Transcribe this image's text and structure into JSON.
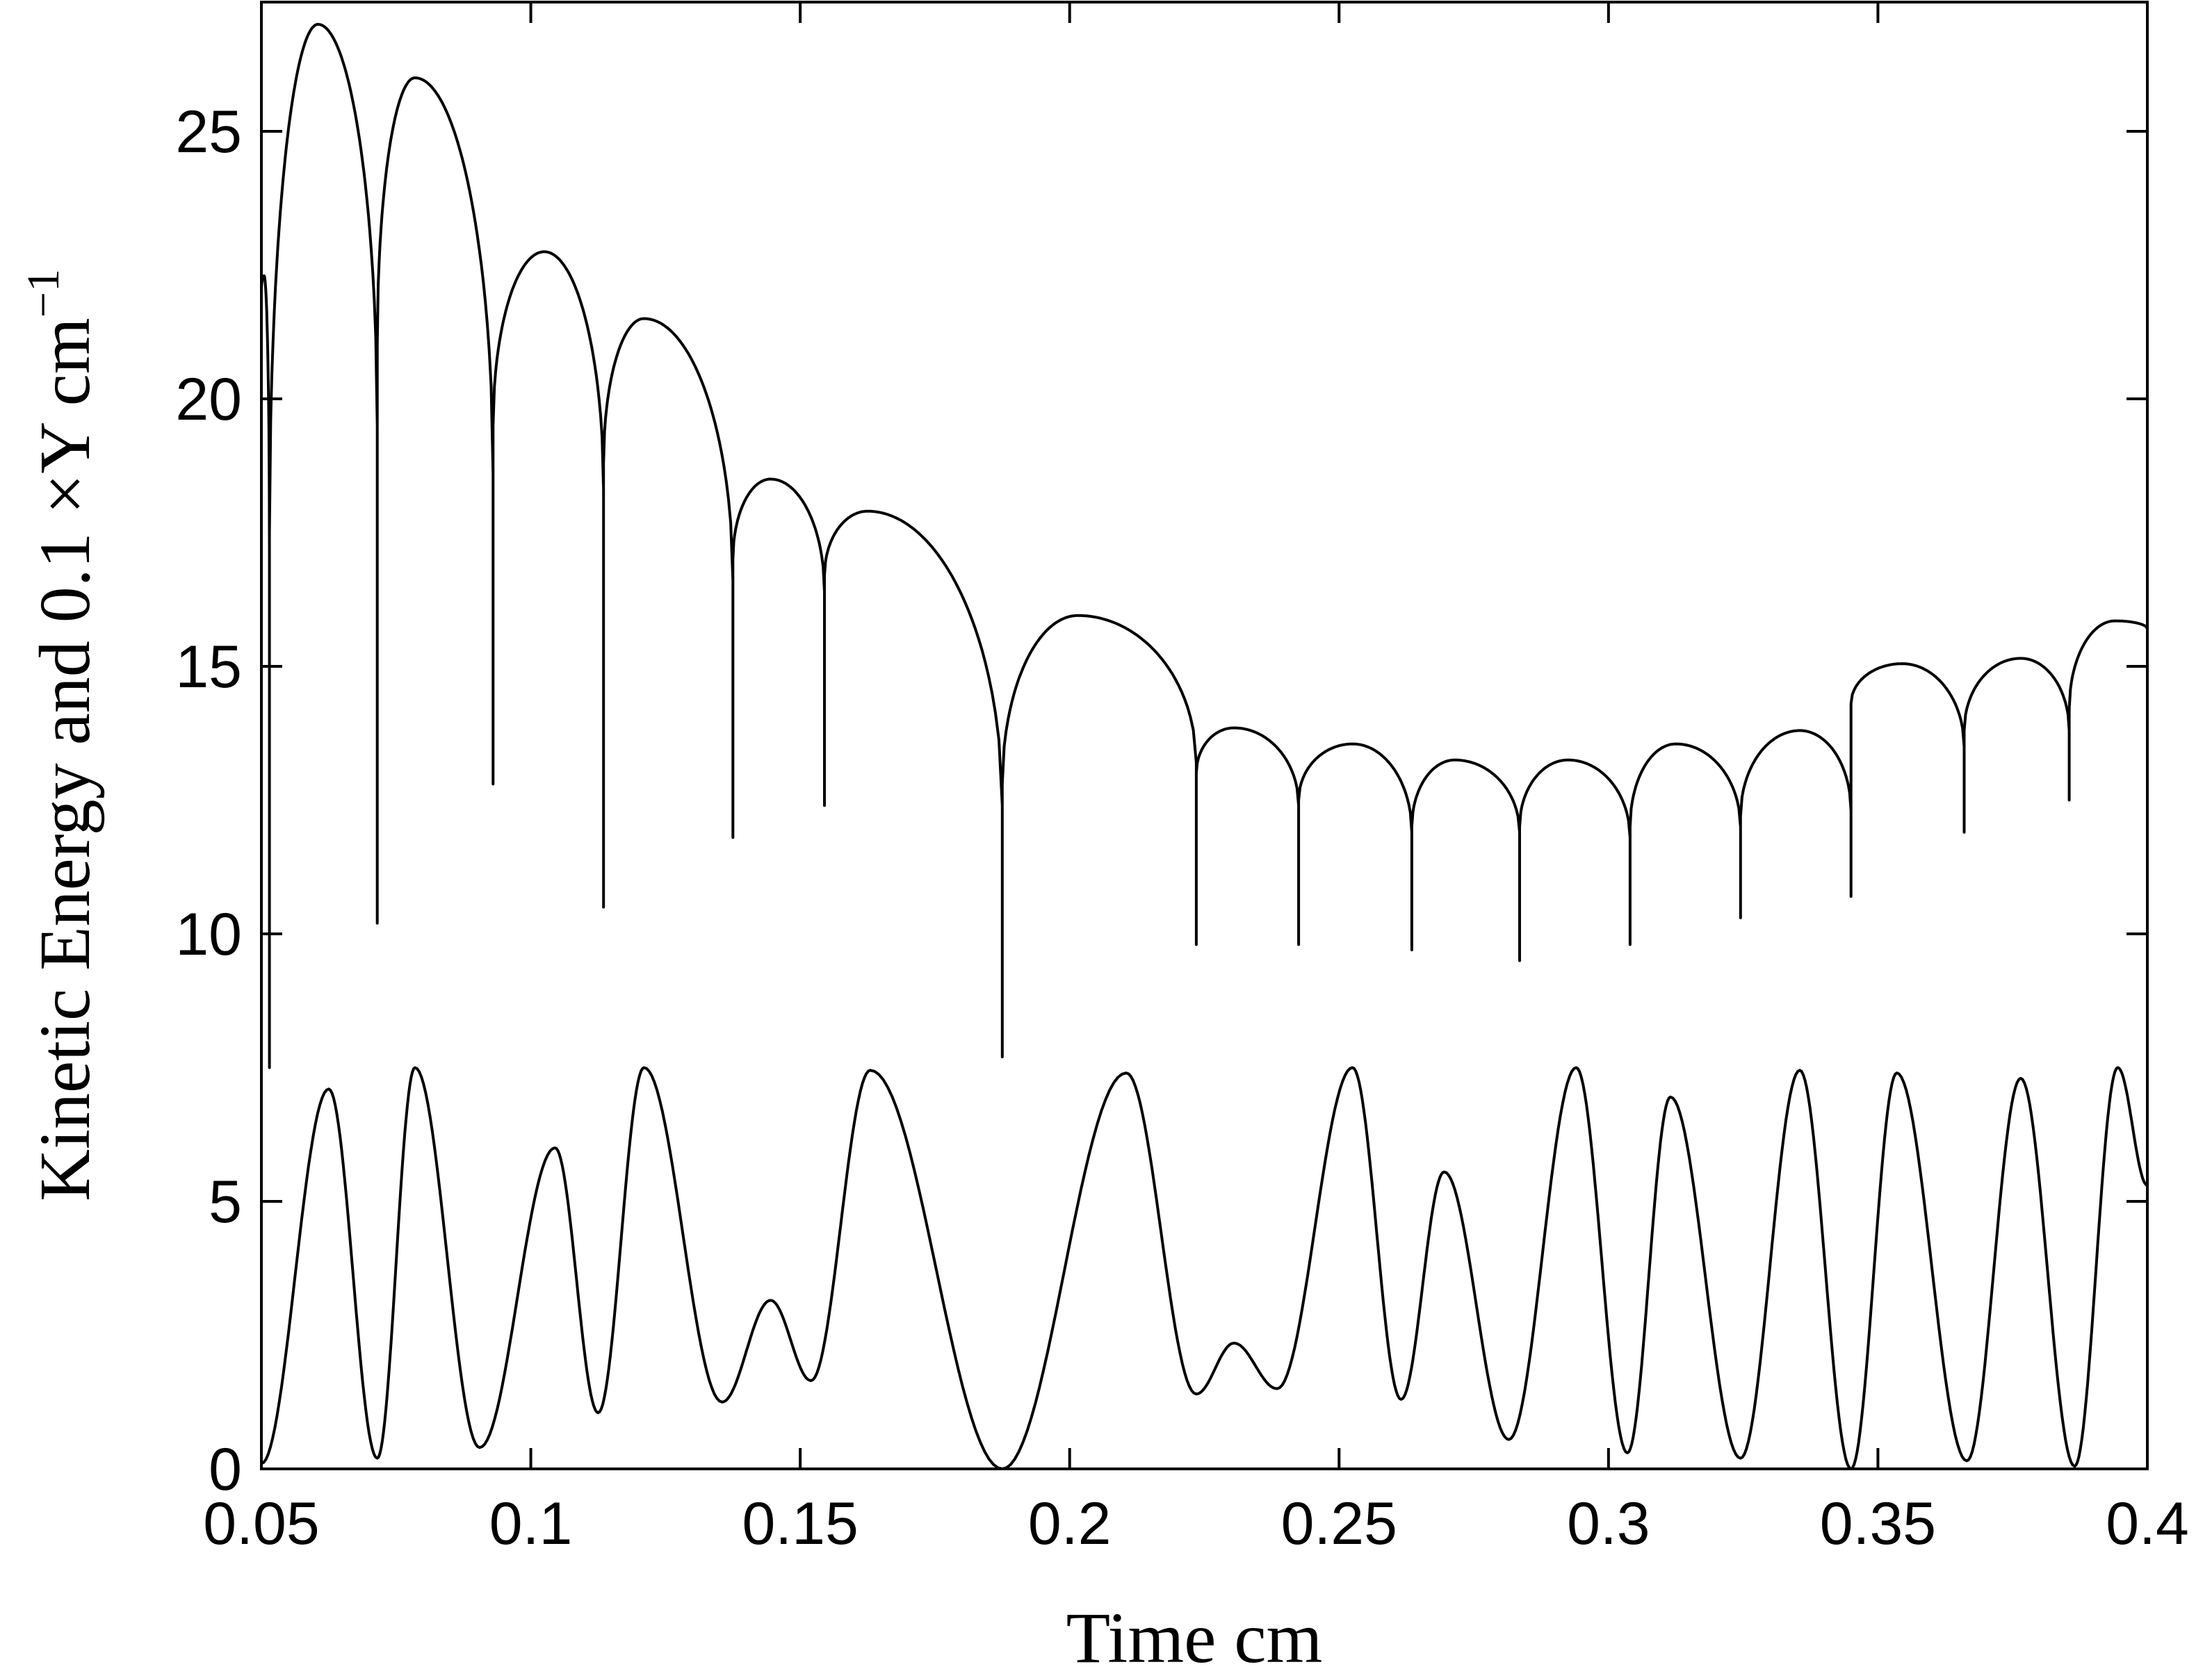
{
  "chart_data": {
    "type": "line",
    "xlabel": "Time  cm",
    "ylabel": "Kinetic Energy and 0.1 ×Y cm",
    "ylabel_superscript": "−1",
    "xlim": [
      0.05,
      0.4
    ],
    "ylim": [
      0,
      27.5
    ],
    "grid": false,
    "x_ticks": [
      {
        "value": 0.05,
        "label": "0.05"
      },
      {
        "value": 0.1,
        "label": "0.1"
      },
      {
        "value": 0.15,
        "label": "0.15"
      },
      {
        "value": 0.2,
        "label": "0.2"
      },
      {
        "value": 0.25,
        "label": "0.25"
      },
      {
        "value": 0.3,
        "label": "0.3"
      },
      {
        "value": 0.35,
        "label": "0.35"
      },
      {
        "value": 0.4,
        "label": "0.4"
      }
    ],
    "y_ticks": [
      {
        "value": 0,
        "label": "0"
      },
      {
        "value": 5,
        "label": "5"
      },
      {
        "value": 10,
        "label": "10"
      },
      {
        "value": 15,
        "label": "15"
      },
      {
        "value": 20,
        "label": "20"
      },
      {
        "value": 25,
        "label": "25"
      }
    ],
    "series": [
      {
        "kind": "cusped",
        "cusps": [
          {
            "x": 0.0515,
            "y": 7.5
          },
          {
            "x": 0.0715,
            "y": 10.2
          },
          {
            "x": 0.093,
            "y": 12.8
          },
          {
            "x": 0.1135,
            "y": 10.5
          },
          {
            "x": 0.1375,
            "y": 11.8
          },
          {
            "x": 0.1545,
            "y": 12.4
          },
          {
            "x": 0.1875,
            "y": 7.7
          },
          {
            "x": 0.2235,
            "y": 9.8
          },
          {
            "x": 0.2425,
            "y": 9.8
          },
          {
            "x": 0.2635,
            "y": 9.7
          },
          {
            "x": 0.2835,
            "y": 9.5
          },
          {
            "x": 0.304,
            "y": 9.8
          },
          {
            "x": 0.3245,
            "y": 10.3
          },
          {
            "x": 0.345,
            "y": 10.7
          },
          {
            "x": 0.366,
            "y": 11.9
          },
          {
            "x": 0.3855,
            "y": 12.5
          }
        ],
        "arches": [
          {
            "start": 0.05,
            "startY": 22.0,
            "peakX": 0.0505,
            "peakY": 22.3,
            "end": 0.0515,
            "endY": 17.0
          },
          {
            "start": 0.0515,
            "startY": 17.5,
            "peakX": 0.0605,
            "peakY": 27.0,
            "end": 0.0715,
            "endY": 19.5
          },
          {
            "start": 0.0715,
            "startY": 21.0,
            "peakX": 0.0785,
            "peakY": 26.0,
            "end": 0.093,
            "endY": 18.6
          },
          {
            "start": 0.093,
            "startY": 19.5,
            "peakX": 0.1025,
            "peakY": 22.75,
            "end": 0.1135,
            "endY": 18.3
          },
          {
            "start": 0.1135,
            "startY": 18.8,
            "peakX": 0.121,
            "peakY": 21.5,
            "end": 0.1375,
            "endY": 16.6
          },
          {
            "start": 0.1375,
            "startY": 17.0,
            "peakX": 0.1445,
            "peakY": 18.5,
            "end": 0.1545,
            "endY": 16.4
          },
          {
            "start": 0.1545,
            "startY": 16.7,
            "peakX": 0.1625,
            "peakY": 17.9,
            "end": 0.1875,
            "endY": 12.4
          },
          {
            "start": 0.1875,
            "startY": 12.8,
            "peakX": 0.2015,
            "peakY": 15.95,
            "end": 0.2235,
            "endY": 13.2
          },
          {
            "start": 0.2235,
            "startY": 13.0,
            "peakX": 0.2305,
            "peakY": 13.85,
            "end": 0.2425,
            "endY": 12.4
          },
          {
            "start": 0.2425,
            "startY": 12.5,
            "peakX": 0.2525,
            "peakY": 13.55,
            "end": 0.2635,
            "endY": 11.9
          },
          {
            "start": 0.2635,
            "startY": 12.0,
            "peakX": 0.2715,
            "peakY": 13.25,
            "end": 0.2835,
            "endY": 11.9
          },
          {
            "start": 0.2835,
            "startY": 12.0,
            "peakX": 0.2925,
            "peakY": 13.25,
            "end": 0.304,
            "endY": 11.8
          },
          {
            "start": 0.304,
            "startY": 12.0,
            "peakX": 0.3125,
            "peakY": 13.55,
            "end": 0.3245,
            "endY": 12.0
          },
          {
            "start": 0.3245,
            "startY": 12.2,
            "peakX": 0.3355,
            "peakY": 13.8,
            "end": 0.345,
            "endY": 12.3
          },
          {
            "start": 0.345,
            "startY": 14.3,
            "peakX": 0.3545,
            "peakY": 15.05,
            "end": 0.366,
            "endY": 13.5
          },
          {
            "start": 0.366,
            "startY": 13.8,
            "peakX": 0.3765,
            "peakY": 15.15,
            "end": 0.3855,
            "endY": 13.8
          },
          {
            "start": 0.3855,
            "startY": 14.2,
            "peakX": 0.394,
            "peakY": 15.85,
            "end": 0.4,
            "endY": 15.7
          }
        ]
      },
      {
        "kind": "oscillation",
        "points": [
          [
            0.05,
            0.1
          ],
          [
            0.0625,
            7.1
          ],
          [
            0.0715,
            0.2
          ],
          [
            0.0785,
            7.5
          ],
          [
            0.0905,
            0.4
          ],
          [
            0.1045,
            6.0
          ],
          [
            0.1125,
            1.05
          ],
          [
            0.121,
            7.5
          ],
          [
            0.1355,
            1.25
          ],
          [
            0.1445,
            3.15
          ],
          [
            0.152,
            1.65
          ],
          [
            0.163,
            7.45
          ],
          [
            0.1875,
            0.0
          ],
          [
            0.2105,
            7.4
          ],
          [
            0.2235,
            1.4
          ],
          [
            0.2305,
            2.35
          ],
          [
            0.2385,
            1.5
          ],
          [
            0.2525,
            7.5
          ],
          [
            0.2615,
            1.3
          ],
          [
            0.2695,
            5.55
          ],
          [
            0.2815,
            0.55
          ],
          [
            0.294,
            7.5
          ],
          [
            0.3035,
            0.3
          ],
          [
            0.3115,
            6.95
          ],
          [
            0.3245,
            0.2
          ],
          [
            0.3355,
            7.45
          ],
          [
            0.345,
            0.0
          ],
          [
            0.3535,
            7.4
          ],
          [
            0.3665,
            0.15
          ],
          [
            0.3765,
            7.3
          ],
          [
            0.3865,
            0.05
          ],
          [
            0.3945,
            7.5
          ],
          [
            0.4,
            5.3
          ]
        ]
      }
    ]
  }
}
